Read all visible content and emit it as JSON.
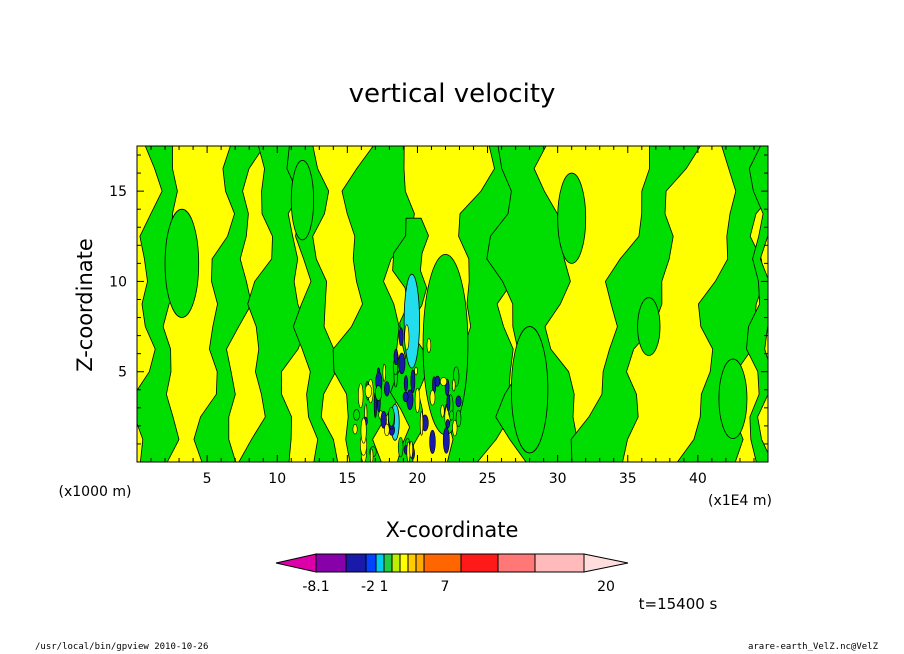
{
  "chart_data": {
    "type": "heatmap",
    "title": "vertical velocity",
    "xlabel": "X-coordinate",
    "ylabel": "Z-coordinate",
    "x_unit_left": "(x1000 m)",
    "x_unit_right": "(x1E4 m)",
    "xlim": [
      0,
      45
    ],
    "ylim": [
      0,
      17.5
    ],
    "xticks": [
      5,
      10,
      15,
      20,
      25,
      30,
      35,
      40
    ],
    "yticks": [
      5,
      10,
      15
    ],
    "colorbar": {
      "levels": [
        -8.1,
        -2,
        1,
        7,
        20
      ],
      "label_values": [
        "-8.1",
        "-2",
        "1",
        "7",
        "20"
      ],
      "colors": [
        "#dd00aa",
        "#8800aa",
        "#1a1aaa",
        "#0044ff",
        "#00ccee",
        "#22cc44",
        "#bbee00",
        "#ffff00",
        "#ffcc00",
        "#ffaa00",
        "#ff6600",
        "#ff1a1a",
        "#ff7777",
        "#ffbbbb",
        "#ffdddd"
      ]
    },
    "time_label": "t=15400 s",
    "field_colors": {
      "positive_small": "#ffff00",
      "negative_small": "#00dd00",
      "strong_negative": "#22ddee",
      "strong_negative_core": "#1a1aaa"
    }
  },
  "footer": {
    "left": "/usr/local/bin/gpview  2010-10-26",
    "right": "arare-earth_VelZ.nc@VelZ"
  }
}
